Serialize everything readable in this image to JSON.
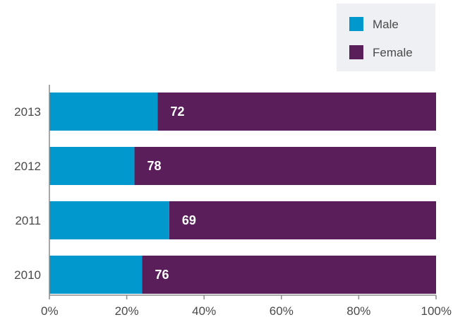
{
  "chart_data": {
    "type": "bar",
    "orientation": "horizontal",
    "stacked": true,
    "normalized": true,
    "categories": [
      "2013",
      "2012",
      "2011",
      "2010"
    ],
    "series": [
      {
        "name": "Male",
        "values": [
          28,
          22,
          31,
          24
        ],
        "color": "#0098cd"
      },
      {
        "name": "Female",
        "values": [
          72,
          78,
          69,
          76
        ],
        "color": "#5a1f5b"
      }
    ],
    "data_labels": [
      "72",
      "78",
      "69",
      "76"
    ],
    "xlim": [
      0,
      100
    ],
    "x_ticks": [
      0,
      20,
      40,
      60,
      80,
      100
    ],
    "x_tick_labels": [
      "0%",
      "20%",
      "40%",
      "60%",
      "80%",
      "100%"
    ],
    "title": "",
    "xlabel": "",
    "ylabel": "",
    "grid": false,
    "legend": {
      "position": "top-right",
      "entries": [
        "Male",
        "Female"
      ],
      "background": "#eef0f3"
    }
  }
}
